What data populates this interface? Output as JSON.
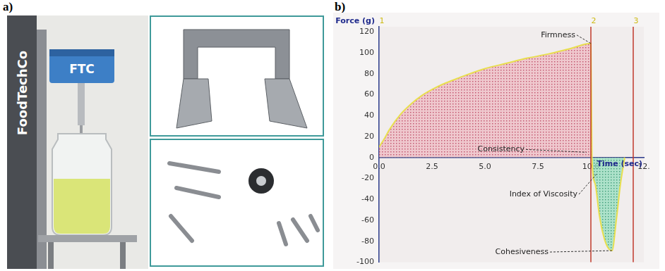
{
  "figure": {
    "panel_labels": [
      "a)",
      "b)"
    ],
    "photo": {
      "brand": "FoodTechCo",
      "device": "FTC"
    }
  },
  "chart_data": {
    "type": "line",
    "y_label": "Force (g)",
    "x_label": "Time (sec)",
    "x": [
      0,
      0.25,
      0.5,
      1,
      1.5,
      2,
      2.5,
      3,
      3.5,
      4,
      5,
      6,
      7,
      8,
      9,
      10,
      10.05,
      10.2,
      10.4,
      10.6,
      10.8,
      11.0,
      11.2,
      11.4,
      11.6
    ],
    "values": [
      10,
      18,
      27,
      41,
      51,
      59,
      65,
      70,
      74,
      78,
      85,
      90,
      95,
      99,
      104,
      109,
      0,
      -25,
      -55,
      -75,
      -86,
      -89,
      -60,
      -25,
      0
    ],
    "color": "#e8df4f",
    "xlim": [
      0,
      12.5
    ],
    "xticks": [
      {
        "value": 0,
        "label": "0.0"
      },
      2.5,
      {
        "value": 5,
        "label": "5.0"
      },
      7.5,
      {
        "value": 10,
        "label": "10.0"
      },
      {
        "value": 12.5,
        "label": "12."
      }
    ],
    "ylim": [
      -100,
      125
    ],
    "yticks": [
      -100,
      -80,
      -60,
      -40,
      -20,
      0,
      20,
      40,
      60,
      80,
      100,
      120
    ],
    "grid": false,
    "markers": [
      {
        "label": "1",
        "x": 0
      },
      {
        "label": "2",
        "x": 10
      },
      {
        "label": "3",
        "x": 12
      }
    ],
    "annotations": [
      {
        "text": "Firmness",
        "x": 10,
        "y": 109
      },
      {
        "text": "Consistency",
        "x": 9.8,
        "y": 5
      },
      {
        "text": "Index of Viscosity",
        "x": 10.3,
        "y": -15
      },
      {
        "text": "Cohesiveness",
        "x": 11,
        "y": -89
      }
    ]
  }
}
